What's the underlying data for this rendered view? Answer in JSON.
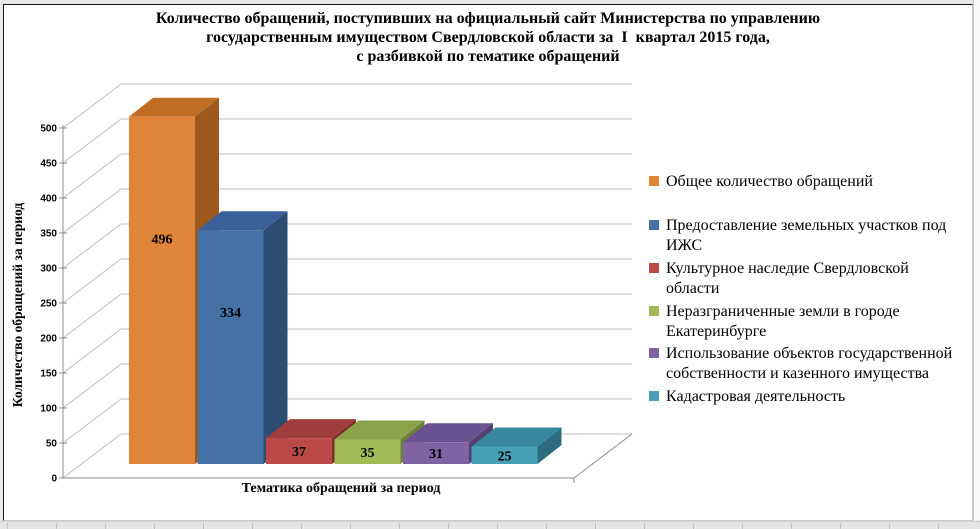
{
  "chart_data": {
    "type": "bar",
    "projection": "3d",
    "title": "Количество обращений, поступивших на официальный сайт Министерства по управлению государственным имуществом Свердловской области за  I  квартал 2015 года, с разбивкой по тематике обращений",
    "title_lines": [
      "Количество обращений, поступивших на официальный сайт Министерства по управлению",
      "государственным имуществом Свердловской области за  I  квартал 2015 года,",
      "с разбивкой по тематике обращений"
    ],
    "xlabel": "Тематика обращений за период",
    "ylabel": "Количество обращений за период",
    "ylim": [
      0,
      500
    ],
    "ytick_step": 50,
    "yticks": [
      0,
      50,
      100,
      150,
      200,
      250,
      300,
      350,
      400,
      450,
      500
    ],
    "grid": true,
    "legend_position": "right",
    "series": [
      {
        "name": "Общее количество обращений",
        "value": 496,
        "color": "#E08538",
        "color_top": "#C06E24",
        "color_side": "#9D591E"
      },
      {
        "name": "Предоставление земельных участков под ИЖС",
        "value": 334,
        "color": "#4571A6",
        "color_top": "#3A6298",
        "color_side": "#2E4D74"
      },
      {
        "name": "Культурное наследие Свердловской области",
        "value": 37,
        "color": "#BB4A47",
        "color_top": "#A03C3A",
        "color_side": "#7C2F2D"
      },
      {
        "name": "Неразграниченные земли в городе Екатеринбурге",
        "value": 35,
        "color": "#A0BA58",
        "color_top": "#8AA248",
        "color_side": "#6B8038"
      },
      {
        "name": "Использование объектов государственной собственности и казенного имущества",
        "value": 31,
        "color": "#7F63A3",
        "color_top": "#6B5291",
        "color_side": "#523F70"
      },
      {
        "name": "Кадастровая деятельность",
        "value": 25,
        "color": "#48A0B6",
        "color_top": "#37889E",
        "color_side": "#2C6B80"
      }
    ]
  }
}
